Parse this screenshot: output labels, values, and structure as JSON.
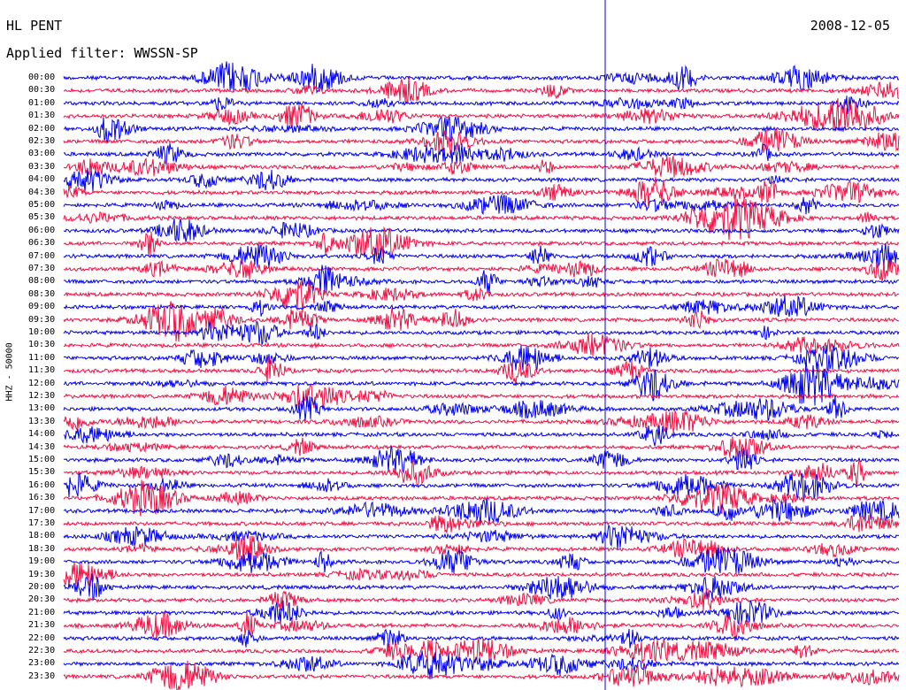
{
  "header": {
    "station": "HL PENT",
    "date": "2008-12-05",
    "filter": "Applied filter: WWSSN-SP",
    "channel": "HHZ - 50000"
  },
  "colors": {
    "odd_row": "#0000ee",
    "even_row": "#ee1144"
  },
  "hour_labels": [
    "00:00",
    "00:30",
    "01:00",
    "01:30",
    "02:00",
    "02:30",
    "03:00",
    "03:30",
    "04:00",
    "04:30",
    "05:00",
    "05:30",
    "06:00",
    "06:30",
    "07:00",
    "07:30",
    "08:00",
    "08:30",
    "09:00",
    "09:30",
    "10:00",
    "10:30",
    "11:00",
    "11:30",
    "12:00",
    "12:30",
    "13:00",
    "13:30",
    "14:00",
    "14:30",
    "15:00",
    "15:30",
    "16:00",
    "16:30",
    "17:00",
    "17:30",
    "18:00",
    "18:30",
    "19:00",
    "19:30",
    "20:00",
    "20:30",
    "21:00",
    "21:30",
    "22:00",
    "22:30",
    "23:00",
    "23:30"
  ]
}
